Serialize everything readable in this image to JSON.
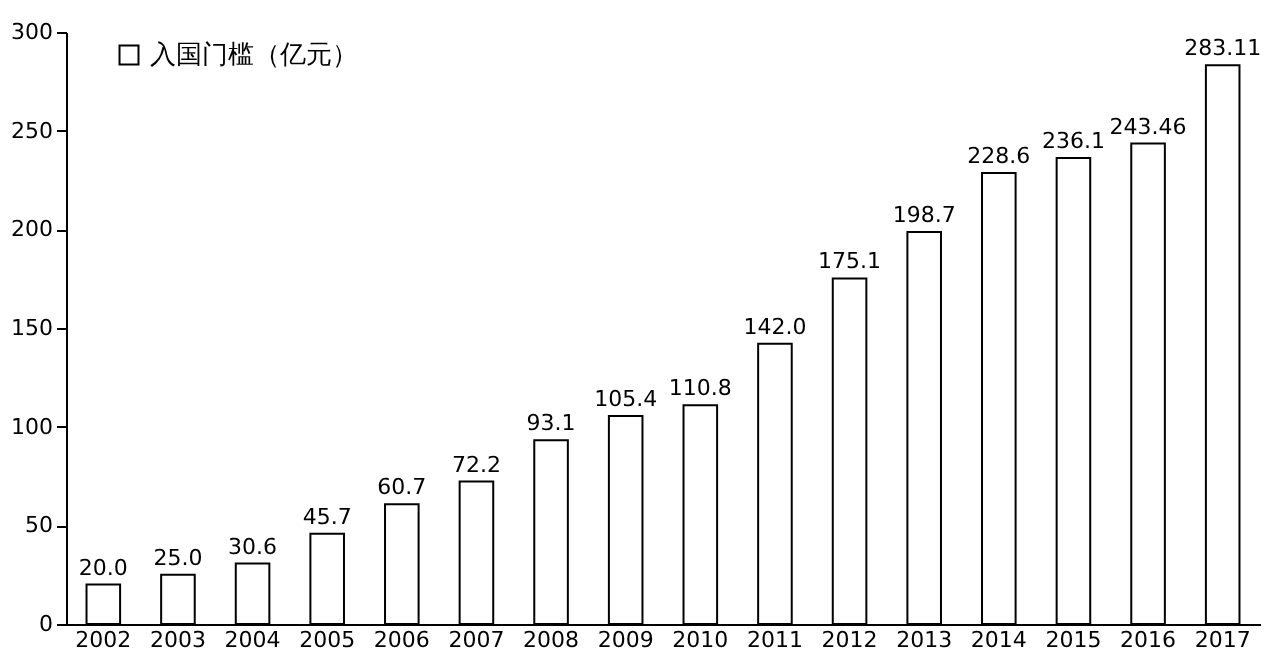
{
  "chart_data": {
    "type": "bar",
    "categories": [
      "2002",
      "2003",
      "2004",
      "2005",
      "2006",
      "2007",
      "2008",
      "2009",
      "2010",
      "2011",
      "2012",
      "2013",
      "2014",
      "2015",
      "2016",
      "2017"
    ],
    "series": [
      {
        "name": "入国门槛（亿元）",
        "color": "#ffffff",
        "values": [
          20.0,
          25.0,
          30.6,
          45.7,
          60.7,
          72.2,
          93.1,
          105.4,
          110.8,
          142.0,
          175.1,
          198.7,
          228.6,
          236.1,
          243.46,
          283.11
        ],
        "value_labels": [
          "20.0",
          "25.0",
          "30.6",
          "45.7",
          "60.7",
          "72.2",
          "93.1",
          "105.4",
          "110.8",
          "142.0",
          "175.1",
          "198.7",
          "228.6",
          "236.1",
          "243.46",
          "283.11"
        ]
      }
    ],
    "ylim": [
      0,
      300
    ],
    "yticks": [
      0,
      50,
      100,
      150,
      200,
      250,
      300
    ],
    "grid": false,
    "legend": "top left"
  }
}
